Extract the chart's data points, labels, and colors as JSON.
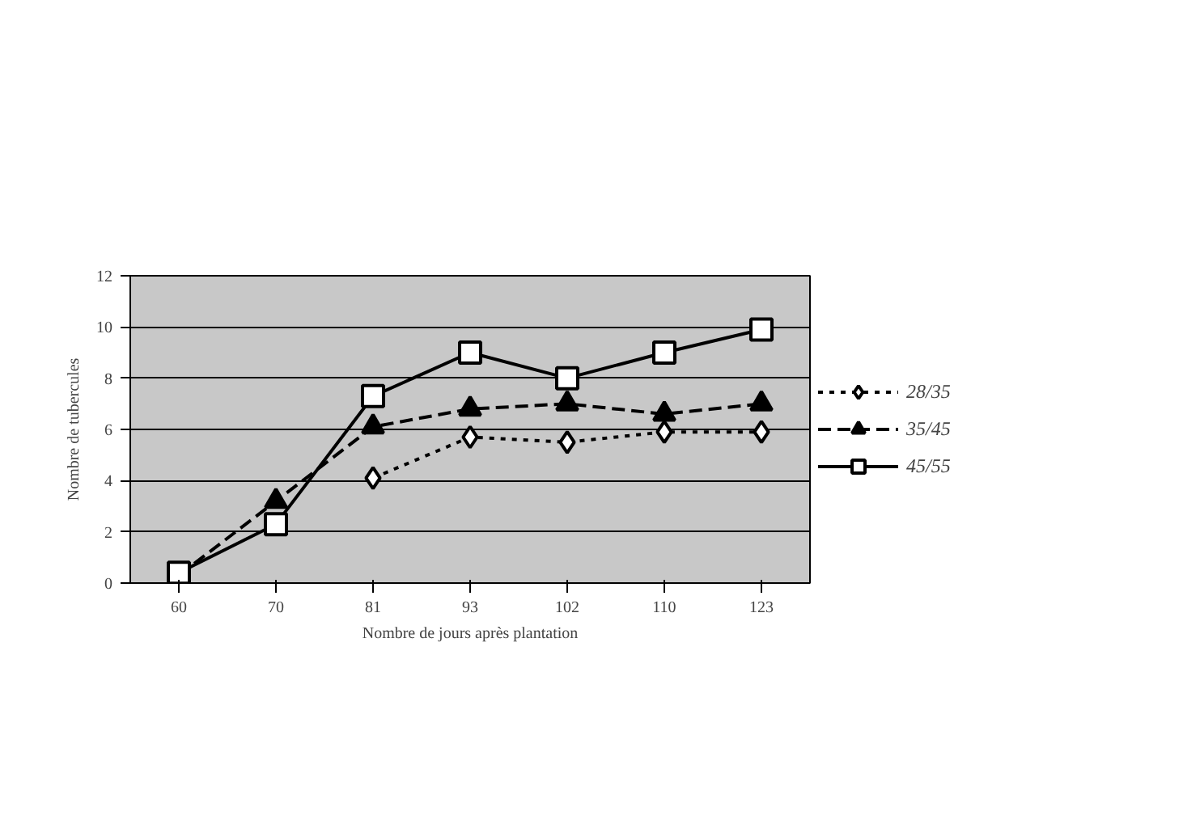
{
  "chart_data": {
    "type": "line",
    "xlabel": "Nombre de jours après plantation",
    "ylabel": "Nombre de tubercules",
    "categories": [
      "60",
      "70",
      "81",
      "93",
      "102",
      "110",
      "123"
    ],
    "ylim": [
      0,
      12
    ],
    "yticks": [
      0,
      2,
      4,
      6,
      8,
      10,
      12
    ],
    "grid": "y",
    "legend": "right",
    "series": [
      {
        "name": "28/35",
        "color": "#000000",
        "marker": "diamond",
        "line_style": "dotted",
        "values": [
          null,
          null,
          4.1,
          5.7,
          5.5,
          5.9,
          5.9
        ]
      },
      {
        "name": "35/45",
        "color": "#000000",
        "marker": "triangle",
        "line_style": "dashed",
        "values": [
          0.3,
          3.2,
          6.1,
          6.8,
          7.0,
          6.6,
          7.0
        ]
      },
      {
        "name": "45/55",
        "color": "#000000",
        "marker": "square",
        "line_style": "solid",
        "values": [
          0.4,
          2.3,
          7.3,
          9.0,
          8.0,
          9.0,
          9.9
        ]
      }
    ]
  }
}
